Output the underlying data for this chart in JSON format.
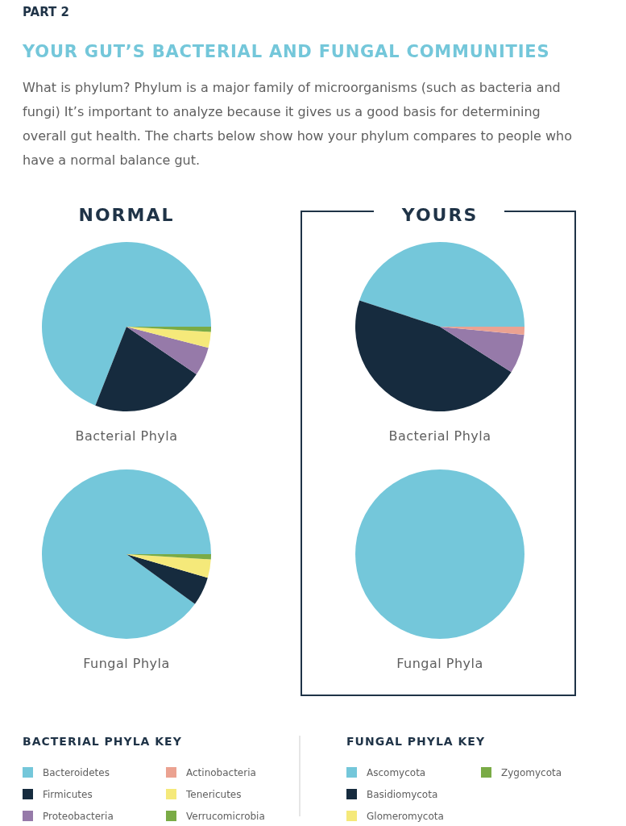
{
  "chart_data": [
    {
      "type": "pie",
      "title": "Bacterial Phyla",
      "subtitle": "NORMAL",
      "annotations": [
        "PART 2",
        "YOUR GUT’S BACTERIAL AND FUNGAL COMMUNITIES",
        "What is phylum? Phylum is a major family of microorganisms (such as bacteria and fungi) It’s important to analyze because it gives us a good basis for determining overall gut health. The charts below show how your phylum compares to people who have a normal balance gut."
      ],
      "legend": "bottom",
      "legend_title": "BACTERIAL PHYLA KEY",
      "categories": [
        "Bacteroidetes",
        "Firmicutes",
        "Proteobacteria",
        "Actinobacteria",
        "Tenericutes",
        "Verrucomicrobia"
      ],
      "values": [
        69,
        21.5,
        5.5,
        0,
        3,
        1
      ],
      "colors": [
        "#74c7da",
        "#162b3e",
        "#967aa9",
        "#eba291",
        "#f5e97a",
        "#7aab46"
      ]
    },
    {
      "type": "pie",
      "title": "Bacterial Phyla",
      "subtitle": "YOURS",
      "values": [
        45,
        46,
        7.5,
        1.5,
        0,
        0
      ],
      "colors": [
        "#74c7da",
        "#162b3e",
        "#967aa9",
        "#eba291",
        "#f5e97a",
        "#7aab46"
      ]
    },
    {
      "type": "pie",
      "title": "Fungal Phyla",
      "legend": "bottom",
      "legend_title": "FUNGAL PHYLA KEY",
      "categories": [
        "Ascomycota",
        "Basidiomycota",
        "Glomeromycota",
        "Zygomycota"
      ],
      "values": [
        90,
        5.5,
        3.5,
        1
      ],
      "colors": [
        "#74c7da",
        "#162b3e",
        "#f5e97a",
        "#7aab46"
      ]
    },
    {
      "type": "pie",
      "title": "Fungal Phyla",
      "values": [
        100,
        0,
        0,
        0
      ],
      "colors": [
        "#74c7da",
        "#162b3e",
        "#f5e97a",
        "#7aab46"
      ]
    }
  ]
}
